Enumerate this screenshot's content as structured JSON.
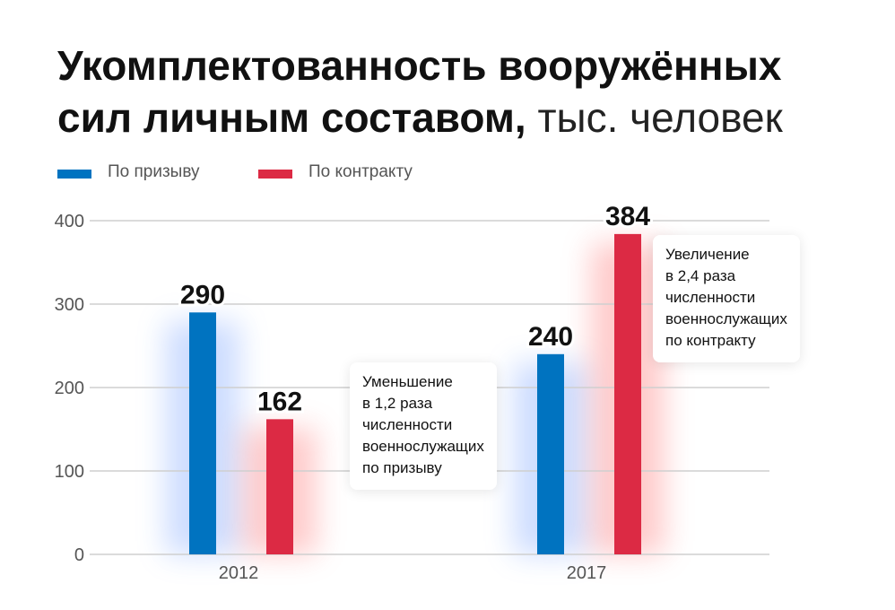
{
  "title": {
    "main": "Укомплектованность вооружённых сил личным составом,",
    "unit": "тыс. человек"
  },
  "legend": [
    {
      "label": "По призыву",
      "color": "#0073c0"
    },
    {
      "label": "По контракту",
      "color": "#dc2a44"
    }
  ],
  "chart_data": {
    "type": "bar",
    "categories": [
      "2012",
      "2017"
    ],
    "series": [
      {
        "name": "По призыву",
        "values": [
          290,
          240
        ],
        "labels": [
          "290",
          "240"
        ],
        "color": "#0073c0"
      },
      {
        "name": "По контракту",
        "values": [
          162,
          384
        ],
        "labels": [
          "162",
          "384"
        ],
        "color": "#dc2a44"
      }
    ],
    "ylim": [
      0,
      400
    ],
    "yticks": [
      "0",
      "100",
      "200",
      "300",
      "400"
    ],
    "grid": true,
    "legend_position": "top-left"
  },
  "annotations": [
    {
      "lines": [
        "Уменьшение",
        "в 1,2 раза",
        "численности",
        "военнослужащих",
        "по призыву"
      ]
    },
    {
      "lines": [
        "Увеличение",
        "в 2,4 раза",
        "численности",
        "военнослужащих",
        "по контракту"
      ]
    }
  ]
}
